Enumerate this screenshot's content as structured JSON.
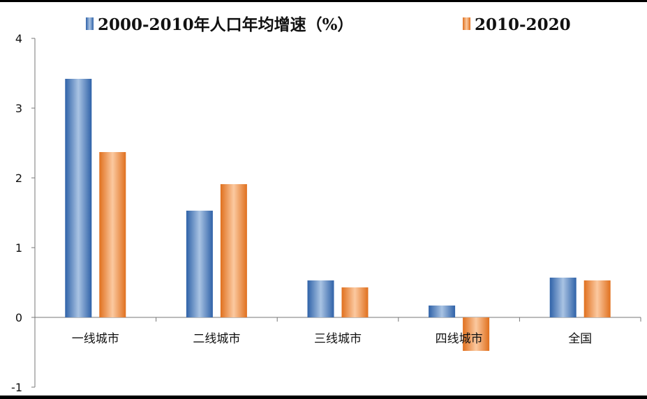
{
  "chart_data": {
    "type": "bar",
    "categories": [
      "一线城市",
      "二线城市",
      "三线城市",
      "四线城市",
      "全国"
    ],
    "series": [
      {
        "name": "2000-2010年人口年均增速（%）",
        "values": [
          3.42,
          1.53,
          0.53,
          0.17,
          0.57
        ]
      },
      {
        "name": "2010-2020",
        "values": [
          2.37,
          1.91,
          0.43,
          -0.48,
          0.53
        ]
      }
    ],
    "ylim": [
      -1,
      4
    ],
    "yticks": [
      -1,
      0,
      1,
      2,
      3,
      4
    ],
    "legend": "top",
    "grid": false
  },
  "colors": {
    "series_1": "#4f81bd",
    "series_2": "#f79646"
  }
}
